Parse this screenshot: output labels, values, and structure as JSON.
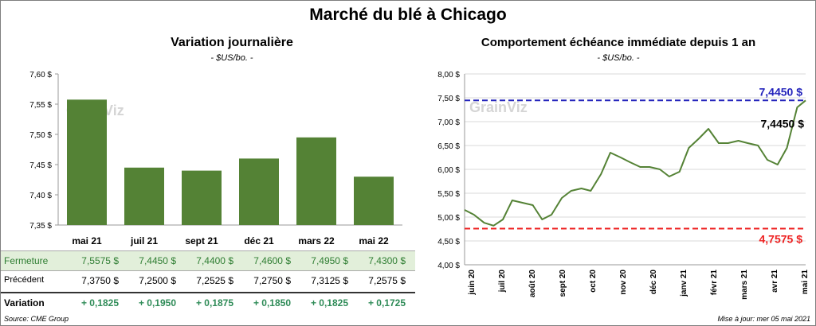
{
  "title": "Marché du blé à Chicago",
  "source": "Source: CME Group",
  "updated": "Mise à jour: mer 05 mai 2021",
  "watermark": "GrainViz",
  "colors": {
    "bar": "#548235",
    "line": "#548235",
    "top": "#2222bb",
    "bottom": "#ee2222",
    "row_bg": "#e2efda",
    "green_text": "#2e8b57"
  },
  "chart_data": [
    {
      "type": "bar",
      "title": "Variation journalière",
      "unit": "- $US/bo. -",
      "categories": [
        "mai 21",
        "juil 21",
        "sept 21",
        "déc 21",
        "mars 22",
        "mai 22"
      ],
      "values": [
        7.5575,
        7.445,
        7.44,
        7.46,
        7.495,
        7.43
      ],
      "ylim": [
        7.35,
        7.6
      ],
      "yticks": [
        7.35,
        7.4,
        7.45,
        7.5,
        7.55,
        7.6
      ],
      "ytick_labels": [
        "7,35 $",
        "7,40 $",
        "7,45 $",
        "7,50 $",
        "7,55 $",
        "7,60 $"
      ],
      "grid": false
    },
    {
      "type": "line",
      "title": "Comportement  échéance immédiate depuis 1 an",
      "unit": "- $US/bo. -",
      "ylim": [
        4.0,
        8.0
      ],
      "yticks": [
        4.0,
        4.5,
        5.0,
        5.5,
        6.0,
        6.5,
        7.0,
        7.5,
        8.0
      ],
      "ytick_labels": [
        "4,00 $",
        "4,50 $",
        "5,00 $",
        "5,50 $",
        "6,00 $",
        "6,50 $",
        "7,00 $",
        "7,50 $",
        "8,00 $"
      ],
      "x_labels": [
        "juin 20",
        "juil 20",
        "août 20",
        "sept 20",
        "oct 20",
        "nov 20",
        "déc 20",
        "janv 21",
        "févr 21",
        "mars 21",
        "avr 21",
        "mai 21"
      ],
      "x_range": [
        "2020-05-05",
        "2021-05-05"
      ],
      "series": [
        {
          "x": [
            "2020-05-05",
            "2020-05-15",
            "2020-05-26",
            "2020-06-05",
            "2020-06-15",
            "2020-06-25",
            "2020-07-06",
            "2020-07-17",
            "2020-07-27",
            "2020-08-06",
            "2020-08-17",
            "2020-08-27",
            "2020-09-07",
            "2020-09-17",
            "2020-09-28",
            "2020-10-08",
            "2020-10-19",
            "2020-10-29",
            "2020-11-09",
            "2020-11-19",
            "2020-11-30",
            "2020-12-10",
            "2020-12-21",
            "2020-12-31",
            "2021-01-11",
            "2021-01-21",
            "2021-02-01",
            "2021-02-11",
            "2021-02-22",
            "2021-03-04",
            "2021-03-15",
            "2021-03-25",
            "2021-04-05",
            "2021-04-15",
            "2021-04-26",
            "2021-05-05"
          ],
          "y": [
            5.15,
            5.05,
            4.88,
            4.82,
            4.95,
            5.35,
            5.3,
            5.25,
            4.95,
            5.05,
            5.4,
            5.55,
            5.6,
            5.55,
            5.9,
            6.35,
            6.25,
            6.15,
            6.05,
            6.05,
            6.0,
            5.85,
            5.95,
            6.45,
            6.65,
            6.85,
            6.55,
            6.55,
            6.6,
            6.55,
            6.5,
            6.2,
            6.1,
            6.45,
            7.3,
            7.445
          ]
        }
      ],
      "reference_lines": [
        {
          "value": 7.445,
          "label": "7,4450 $",
          "color": "#2222bb"
        },
        {
          "value": 4.7575,
          "label": "4,7575 $",
          "color": "#ee2222"
        }
      ],
      "last_label": "7,4450 $",
      "grid": true
    }
  ],
  "table": {
    "rows": [
      {
        "label": "Fermeture",
        "values": [
          "7,5575  $",
          "7,4450  $",
          "7,4400  $",
          "7,4600  $",
          "7,4950  $",
          "7,4300  $"
        ]
      },
      {
        "label": "Précédent",
        "values": [
          "7,3750  $",
          "7,2500  $",
          "7,2525  $",
          "7,2750  $",
          "7,3125  $",
          "7,2575  $"
        ]
      },
      {
        "label": "Variation",
        "values": [
          "+ 0,1825",
          "+ 0,1950",
          "+ 0,1875",
          "+ 0,1850",
          "+ 0,1825",
          "+ 0,1725"
        ]
      }
    ]
  }
}
